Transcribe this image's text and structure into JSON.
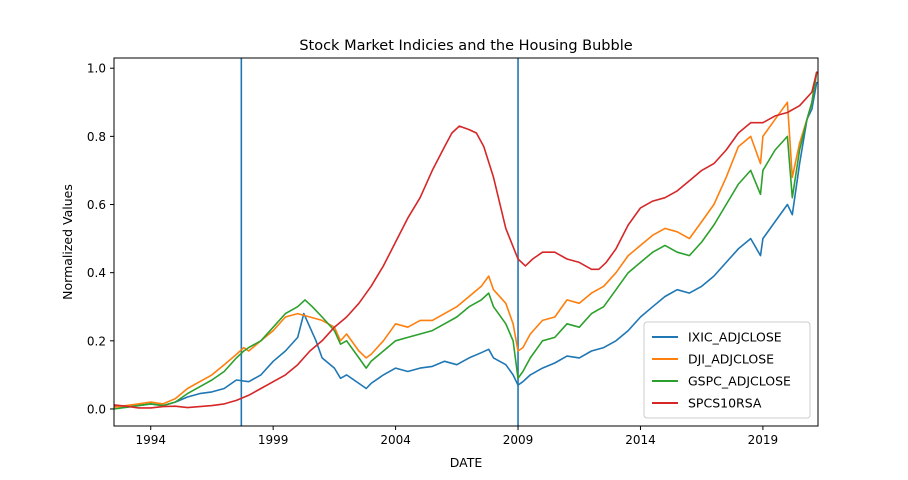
{
  "chart_data": {
    "type": "line",
    "title": "Stock Market Indicies and the Housing Bubble",
    "xlabel": "DATE",
    "ylabel": "Normalized Values",
    "xlim": [
      1992.5,
      2021.25
    ],
    "ylim": [
      -0.05,
      1.03
    ],
    "x_ticks": [
      1994,
      1999,
      2004,
      2009,
      2014,
      2019
    ],
    "x_tick_labels": [
      "1994",
      "1999",
      "2004",
      "2009",
      "2014",
      "2019"
    ],
    "y_ticks": [
      0.0,
      0.2,
      0.4,
      0.6,
      0.8,
      1.0
    ],
    "y_tick_labels": [
      "0.0",
      "0.2",
      "0.4",
      "0.6",
      "0.8",
      "1.0"
    ],
    "grid": false,
    "legend_position": "lower-right",
    "vlines": [
      {
        "x": 1997.7,
        "color": "#1f77b4"
      },
      {
        "x": 2009.0,
        "color": "#1f77b4"
      }
    ],
    "series": [
      {
        "name": "IXIC_ADJCLOSE",
        "color": "#1f77b4",
        "x": [
          1992.5,
          1993.0,
          1993.5,
          1994.0,
          1994.5,
          1995.0,
          1995.5,
          1996.0,
          1996.5,
          1997.0,
          1997.5,
          1998.0,
          1998.5,
          1999.0,
          1999.5,
          2000.0,
          2000.25,
          2000.5,
          2000.75,
          2001.0,
          2001.5,
          2001.75,
          2002.0,
          2002.5,
          2002.8,
          2003.0,
          2003.5,
          2004.0,
          2004.5,
          2005.0,
          2005.5,
          2006.0,
          2006.5,
          2007.0,
          2007.5,
          2007.8,
          2008.0,
          2008.5,
          2008.8,
          2009.0,
          2009.2,
          2009.5,
          2010.0,
          2010.5,
          2011.0,
          2011.5,
          2012.0,
          2012.5,
          2013.0,
          2013.5,
          2014.0,
          2014.5,
          2015.0,
          2015.5,
          2016.0,
          2016.5,
          2017.0,
          2017.5,
          2018.0,
          2018.5,
          2018.9,
          2019.0,
          2019.5,
          2020.0,
          2020.2,
          2020.5,
          2020.8,
          2021.0,
          2021.2
        ],
        "y": [
          0.01,
          0.005,
          0.01,
          0.015,
          0.01,
          0.02,
          0.035,
          0.045,
          0.05,
          0.06,
          0.085,
          0.08,
          0.1,
          0.14,
          0.17,
          0.21,
          0.28,
          0.24,
          0.2,
          0.15,
          0.12,
          0.09,
          0.1,
          0.075,
          0.06,
          0.075,
          0.1,
          0.12,
          0.11,
          0.12,
          0.125,
          0.14,
          0.13,
          0.15,
          0.165,
          0.175,
          0.15,
          0.13,
          0.1,
          0.07,
          0.08,
          0.1,
          0.12,
          0.135,
          0.155,
          0.15,
          0.17,
          0.18,
          0.2,
          0.23,
          0.27,
          0.3,
          0.33,
          0.35,
          0.34,
          0.36,
          0.39,
          0.43,
          0.47,
          0.5,
          0.45,
          0.5,
          0.55,
          0.6,
          0.57,
          0.72,
          0.85,
          0.88,
          0.96
        ]
      },
      {
        "name": "DJI_ADJCLOSE",
        "color": "#ff7f0e",
        "x": [
          1992.5,
          1993.0,
          1993.5,
          1994.0,
          1994.5,
          1995.0,
          1995.5,
          1996.0,
          1996.5,
          1997.0,
          1997.5,
          1997.8,
          1998.0,
          1998.5,
          1999.0,
          1999.5,
          2000.0,
          2000.5,
          2001.0,
          2001.5,
          2001.75,
          2002.0,
          2002.5,
          2002.8,
          2003.0,
          2003.5,
          2004.0,
          2004.5,
          2005.0,
          2005.5,
          2006.0,
          2006.5,
          2007.0,
          2007.5,
          2007.8,
          2008.0,
          2008.5,
          2008.8,
          2009.0,
          2009.2,
          2009.5,
          2010.0,
          2010.5,
          2011.0,
          2011.5,
          2012.0,
          2012.5,
          2013.0,
          2013.5,
          2014.0,
          2014.5,
          2015.0,
          2015.5,
          2016.0,
          2016.5,
          2017.0,
          2017.5,
          2018.0,
          2018.5,
          2018.9,
          2019.0,
          2019.5,
          2020.0,
          2020.2,
          2020.5,
          2020.8,
          2021.0,
          2021.2
        ],
        "y": [
          0.005,
          0.01,
          0.015,
          0.02,
          0.015,
          0.03,
          0.06,
          0.08,
          0.1,
          0.13,
          0.16,
          0.18,
          0.17,
          0.2,
          0.23,
          0.27,
          0.28,
          0.27,
          0.26,
          0.24,
          0.2,
          0.22,
          0.17,
          0.15,
          0.16,
          0.2,
          0.25,
          0.24,
          0.26,
          0.26,
          0.28,
          0.3,
          0.33,
          0.36,
          0.39,
          0.35,
          0.31,
          0.25,
          0.17,
          0.18,
          0.22,
          0.26,
          0.27,
          0.32,
          0.31,
          0.34,
          0.36,
          0.4,
          0.45,
          0.48,
          0.51,
          0.53,
          0.52,
          0.5,
          0.55,
          0.6,
          0.68,
          0.77,
          0.8,
          0.72,
          0.8,
          0.85,
          0.9,
          0.68,
          0.78,
          0.85,
          0.9,
          0.99
        ]
      },
      {
        "name": "GSPC_ADJCLOSE",
        "color": "#2ca02c",
        "x": [
          1992.5,
          1993.0,
          1993.5,
          1994.0,
          1994.5,
          1995.0,
          1995.5,
          1996.0,
          1996.5,
          1997.0,
          1997.5,
          1997.8,
          1998.0,
          1998.5,
          1999.0,
          1999.5,
          2000.0,
          2000.3,
          2000.6,
          2001.0,
          2001.5,
          2001.75,
          2002.0,
          2002.5,
          2002.8,
          2003.0,
          2003.5,
          2004.0,
          2004.5,
          2005.0,
          2005.5,
          2006.0,
          2006.5,
          2007.0,
          2007.5,
          2007.8,
          2008.0,
          2008.5,
          2008.8,
          2009.0,
          2009.2,
          2009.5,
          2010.0,
          2010.5,
          2011.0,
          2011.5,
          2012.0,
          2012.5,
          2013.0,
          2013.5,
          2014.0,
          2014.5,
          2015.0,
          2015.5,
          2016.0,
          2016.5,
          2017.0,
          2017.5,
          2018.0,
          2018.5,
          2018.9,
          2019.0,
          2019.5,
          2020.0,
          2020.2,
          2020.5,
          2020.8,
          2021.0,
          2021.2
        ],
        "y": [
          0.0,
          0.005,
          0.01,
          0.015,
          0.01,
          0.02,
          0.045,
          0.065,
          0.085,
          0.11,
          0.15,
          0.17,
          0.18,
          0.2,
          0.24,
          0.28,
          0.3,
          0.32,
          0.3,
          0.27,
          0.23,
          0.19,
          0.2,
          0.15,
          0.12,
          0.14,
          0.17,
          0.2,
          0.21,
          0.22,
          0.23,
          0.25,
          0.27,
          0.3,
          0.32,
          0.34,
          0.3,
          0.25,
          0.2,
          0.09,
          0.11,
          0.15,
          0.2,
          0.21,
          0.25,
          0.24,
          0.28,
          0.3,
          0.35,
          0.4,
          0.43,
          0.46,
          0.48,
          0.46,
          0.45,
          0.49,
          0.54,
          0.6,
          0.66,
          0.7,
          0.63,
          0.7,
          0.76,
          0.8,
          0.62,
          0.76,
          0.85,
          0.9,
          0.99
        ]
      },
      {
        "name": "SPCS10RSA",
        "color": "#d62728",
        "x": [
          1992.5,
          1993.0,
          1993.5,
          1994.0,
          1994.5,
          1995.0,
          1995.5,
          1996.0,
          1996.5,
          1997.0,
          1997.5,
          1998.0,
          1998.5,
          1999.0,
          1999.5,
          2000.0,
          2000.5,
          2001.0,
          2001.5,
          2002.0,
          2002.5,
          2003.0,
          2003.5,
          2004.0,
          2004.5,
          2005.0,
          2005.5,
          2006.0,
          2006.3,
          2006.6,
          2007.0,
          2007.3,
          2007.6,
          2008.0,
          2008.5,
          2009.0,
          2009.3,
          2009.6,
          2010.0,
          2010.5,
          2011.0,
          2011.5,
          2012.0,
          2012.3,
          2012.6,
          2013.0,
          2013.5,
          2014.0,
          2014.5,
          2015.0,
          2015.5,
          2016.0,
          2016.5,
          2017.0,
          2017.5,
          2018.0,
          2018.5,
          2019.0,
          2019.5,
          2020.0,
          2020.5,
          2021.0,
          2021.2
        ],
        "y": [
          0.012,
          0.008,
          0.003,
          0.003,
          0.007,
          0.008,
          0.004,
          0.007,
          0.01,
          0.015,
          0.025,
          0.04,
          0.06,
          0.08,
          0.1,
          0.13,
          0.17,
          0.2,
          0.24,
          0.27,
          0.31,
          0.36,
          0.42,
          0.49,
          0.56,
          0.62,
          0.7,
          0.77,
          0.81,
          0.83,
          0.82,
          0.81,
          0.77,
          0.68,
          0.53,
          0.44,
          0.42,
          0.44,
          0.46,
          0.46,
          0.44,
          0.43,
          0.41,
          0.41,
          0.43,
          0.47,
          0.54,
          0.59,
          0.61,
          0.62,
          0.64,
          0.67,
          0.7,
          0.72,
          0.76,
          0.81,
          0.84,
          0.84,
          0.86,
          0.87,
          0.89,
          0.93,
          0.99
        ]
      }
    ]
  }
}
